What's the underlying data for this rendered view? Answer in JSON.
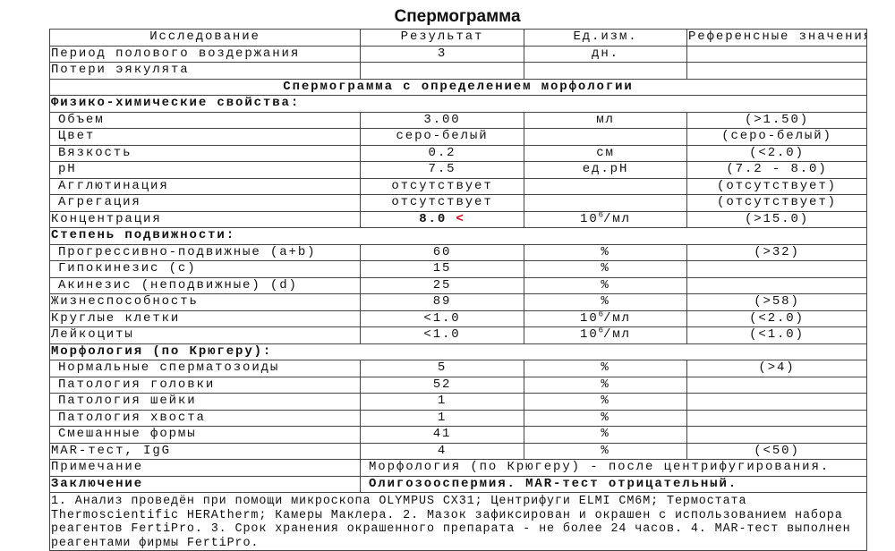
{
  "title": "Спермограмма",
  "headers": [
    "Исследование",
    "Результат",
    "Ед.изм.",
    "Референсные значения"
  ],
  "top_rows": [
    {
      "name": "Период полового воздержания",
      "result": "3",
      "unit": "дн.",
      "ref": ""
    },
    {
      "name": "Потери эякулята",
      "result": "",
      "unit": "",
      "ref": ""
    }
  ],
  "section_title": "Спермограмма с определением морфологии",
  "phys": {
    "title": "Физико-химические свойства:",
    "rows": [
      {
        "name": "Объем",
        "result": "3.00",
        "unit": "мл",
        "ref": "(>1.50)"
      },
      {
        "name": "Цвет",
        "result": "серо-белый",
        "unit": "",
        "ref": "(серо-белый)"
      },
      {
        "name": "Вязкость",
        "result": "0.2",
        "unit": "см",
        "ref": "(<2.0)"
      },
      {
        "name": "pH",
        "result": "7.5",
        "unit": "ед.pH",
        "ref": "(7.2 - 8.0)"
      },
      {
        "name": "Агглютинация",
        "result": "отсутствует",
        "unit": "",
        "ref": "(отсутствует)"
      },
      {
        "name": "Агрегация",
        "result": "отсутствует",
        "unit": "",
        "ref": "(отсутствует)"
      }
    ]
  },
  "concentration": {
    "name": "Концентрация",
    "result": "8.0",
    "flag": "<",
    "unit_base": "10",
    "unit_exp": "6",
    "unit_suffix": "/мл",
    "ref": "(>15.0)",
    "flag_color": "#d0021b"
  },
  "motility": {
    "title": "Степень подвижности:",
    "rows": [
      {
        "name": "Прогрессивно-подвижные (a+b)",
        "result": "60",
        "unit": "%",
        "ref": "(>32)"
      },
      {
        "name": "Гипокинезис (c)",
        "result": "15",
        "unit": "%",
        "ref": ""
      },
      {
        "name": "Акинезис (неподвижные) (d)",
        "result": "25",
        "unit": "%",
        "ref": ""
      }
    ]
  },
  "viability": {
    "name": "Жизнеспособность",
    "result": "89",
    "unit": "%",
    "ref": "(>58)"
  },
  "round_cells": {
    "name": "Круглые клетки",
    "result": "<1.0",
    "unit_base": "10",
    "unit_exp": "6",
    "unit_suffix": "/мл",
    "ref": "(<2.0)"
  },
  "leukocytes": {
    "name": "Лейкоциты",
    "result": "<1.0",
    "unit_base": "10",
    "unit_exp": "6",
    "unit_suffix": "/мл",
    "ref": "(<1.0)"
  },
  "morphology": {
    "title": "Морфология (по Крюгеру):",
    "rows": [
      {
        "name": "Нормальные сперматозоиды",
        "result": "5",
        "unit": "%",
        "ref": "(>4)"
      },
      {
        "name": "Патология головки",
        "result": "52",
        "unit": "%",
        "ref": ""
      },
      {
        "name": "Патология шейки",
        "result": "1",
        "unit": "%",
        "ref": ""
      },
      {
        "name": "Патология хвоста",
        "result": "1",
        "unit": "%",
        "ref": ""
      },
      {
        "name": "Смешанные формы",
        "result": "41",
        "unit": "%",
        "ref": ""
      }
    ]
  },
  "mar": {
    "name": "MAR-тест, IgG",
    "result": "4",
    "unit": "%",
    "ref": "(<50)"
  },
  "note": {
    "label": "Примечание",
    "text": "Морфология (по Крюгеру) - после центрифугирования."
  },
  "conclusion": {
    "label": "Заключение",
    "text": "Олигозооспермия. MAR-тест отрицательный."
  },
  "footnote": " 1. Анализ проведён при помощи микроскопа OLYMPUS CX31; Центрифуги ELMI CM6M; Термостата Thermoscientific HERAtherm; Камеры Маклера. 2. Мазок зафиксирован и окрашен с использованием набора реагентов FertiPro. 3. Срок хранения окрашенного препарата - не более 24 часов. 4. MAR-тест выполнен реагентами фирмы FertiPro."
}
